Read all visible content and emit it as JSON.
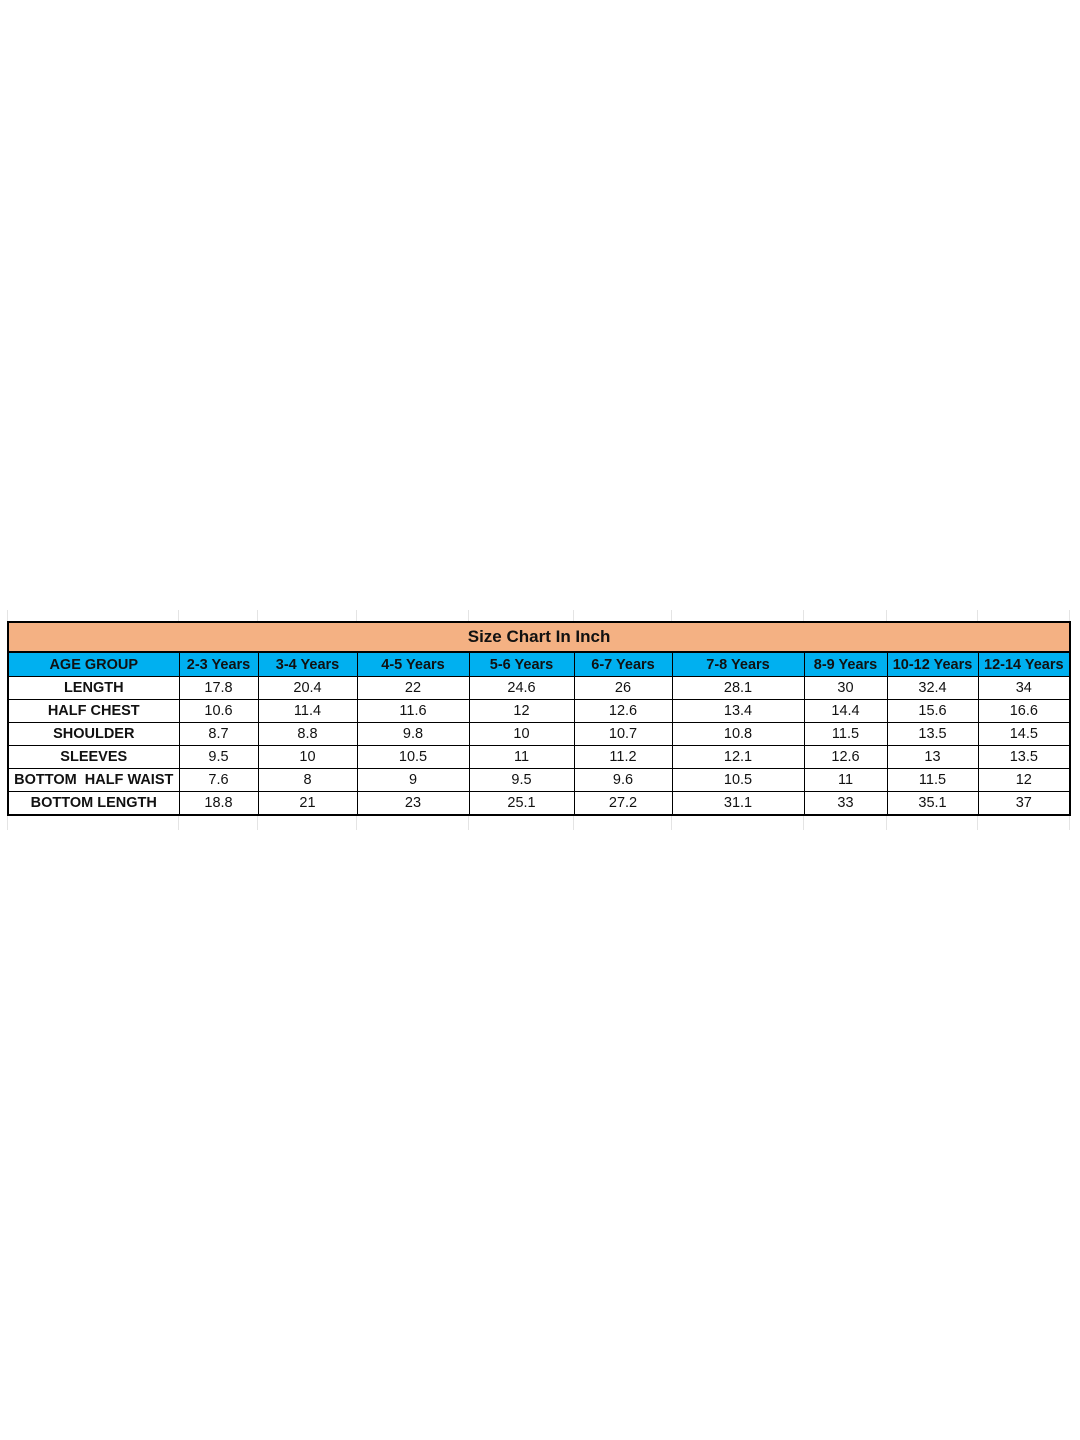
{
  "title": "Size Chart In Inch",
  "colors": {
    "title_bg": "#F4B183",
    "header_bg": "#00B0F0"
  },
  "header": [
    "AGE GROUP",
    "2-3 Years",
    "3-4 Years",
    "4-5 Years",
    "5-6 Years",
    "6-7 Years",
    "7-8 Years",
    "8-9 Years",
    "10-12 Years",
    "12-14 Years"
  ],
  "rows": [
    {
      "label": "LENGTH",
      "values": [
        "17.8",
        "20.4",
        "22",
        "24.6",
        "26",
        "28.1",
        "30",
        "32.4",
        "34"
      ]
    },
    {
      "label": "HALF CHEST",
      "values": [
        "10.6",
        "11.4",
        "11.6",
        "12",
        "12.6",
        "13.4",
        "14.4",
        "15.6",
        "16.6"
      ]
    },
    {
      "label": "SHOULDER",
      "values": [
        "8.7",
        "8.8",
        "9.8",
        "10",
        "10.7",
        "10.8",
        "11.5",
        "13.5",
        "14.5"
      ]
    },
    {
      "label": "SLEEVES",
      "values": [
        "9.5",
        "10",
        "10.5",
        "11",
        "11.2",
        "12.1",
        "12.6",
        "13",
        "13.5"
      ]
    },
    {
      "label": "BOTTOM  HALF WAIST",
      "values": [
        "7.6",
        "8",
        "9",
        "9.5",
        "9.6",
        "10.5",
        "11",
        "11.5",
        "12"
      ]
    },
    {
      "label": "BOTTOM LENGTH",
      "values": [
        "18.8",
        "21",
        "23",
        "25.1",
        "27.2",
        "31.1",
        "33",
        "35.1",
        "37"
      ]
    }
  ]
}
